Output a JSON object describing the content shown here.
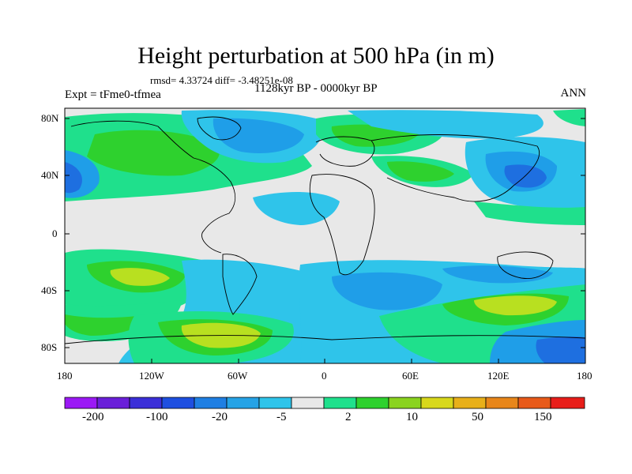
{
  "title": "Height perturbation at 500 hPa (in m)",
  "stats": "rmsd= 4.33724 diff= -3.48251e-08",
  "experiment": "Expt = tFme0-tfmea",
  "period": "1128kyr BP - 0000kyr BP",
  "season": "ANN",
  "axes": {
    "lat_ticks": [
      "80N",
      "40N",
      "0",
      "40S",
      "80S"
    ],
    "lon_ticks": [
      "180",
      "120W",
      "60W",
      "0",
      "60E",
      "120E",
      "180"
    ]
  },
  "colorbar": {
    "labels": [
      "-200",
      "-100",
      "-20",
      "-5",
      "2",
      "10",
      "50",
      "150"
    ],
    "colors": [
      "#9b19f5",
      "#6a1fd9",
      "#3b2fd8",
      "#1e4fe0",
      "#1f7fe3",
      "#26a3e6",
      "#2fc4ea",
      "#e8e8e8",
      "#1fe08c",
      "#2ed12e",
      "#8ad31f",
      "#d8d81c",
      "#e8b01a",
      "#e8861a",
      "#e85a1a",
      "#e81e1a"
    ]
  },
  "map": {
    "background": "#e8e8e8",
    "fill_colors": {
      "blue_light": "#2fc4ea",
      "blue": "#1f9ee8",
      "blue_dark": "#1e6fe0",
      "green": "#1fe08c",
      "green_mid": "#2ed12e",
      "yellow_green": "#b8e020"
    }
  }
}
